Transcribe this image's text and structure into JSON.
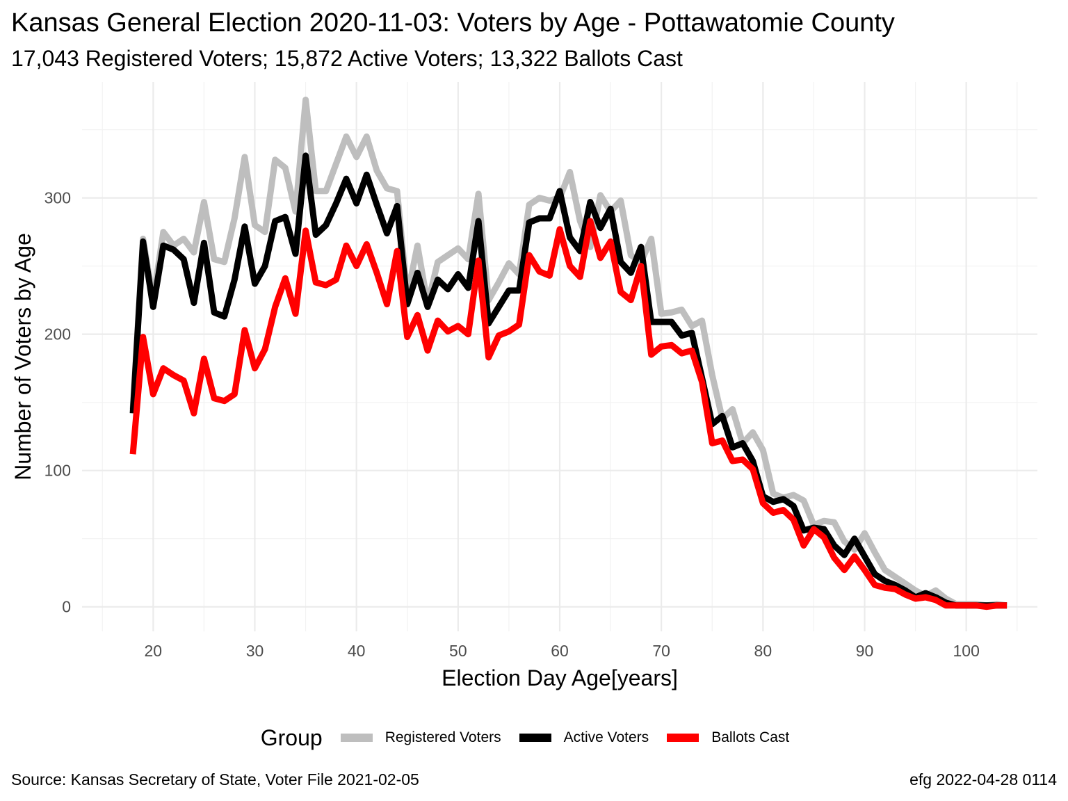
{
  "header": {
    "title": "Kansas General Election 2020-11-03:  Voters by Age - Pottawatomie County",
    "subtitle": "17,043 Registered Voters; 15,872 Active Voters; 13,322 Ballots Cast"
  },
  "footer": {
    "source": "Source:  Kansas Secretary of State, Voter File  2021-02-05",
    "credit": "efg 2022-04-28 0114"
  },
  "legend": {
    "title": "Group",
    "items": [
      {
        "label": "Registered Voters",
        "color": "#bebebe"
      },
      {
        "label": "Active Voters",
        "color": "#000000"
      },
      {
        "label": "Ballots Cast",
        "color": "#ff0000"
      }
    ]
  },
  "chart_data": {
    "type": "line",
    "xlabel": "Election Day Age[years]",
    "ylabel": "Number of Voters by Age",
    "xlim": [
      13,
      107
    ],
    "ylim": [
      -18,
      385
    ],
    "x_ticks": [
      20,
      30,
      40,
      50,
      60,
      70,
      80,
      90,
      100
    ],
    "y_ticks": [
      0,
      100,
      200,
      300
    ],
    "grid": true,
    "legend_position": "bottom",
    "x": [
      18,
      19,
      20,
      21,
      22,
      23,
      24,
      25,
      26,
      27,
      28,
      29,
      30,
      31,
      32,
      33,
      34,
      35,
      36,
      37,
      38,
      39,
      40,
      41,
      42,
      43,
      44,
      45,
      46,
      47,
      48,
      49,
      50,
      51,
      52,
      53,
      54,
      55,
      56,
      57,
      58,
      59,
      60,
      61,
      62,
      63,
      64,
      65,
      66,
      67,
      68,
      69,
      70,
      71,
      72,
      73,
      74,
      75,
      76,
      77,
      78,
      79,
      80,
      81,
      82,
      83,
      84,
      85,
      86,
      87,
      88,
      89,
      90,
      91,
      92,
      93,
      94,
      95,
      96,
      97,
      98,
      99,
      100,
      101,
      102,
      103,
      104
    ],
    "series": [
      {
        "name": "Registered Voters",
        "color": "#bebebe",
        "values": [
          145,
          270,
          225,
          275,
          265,
          270,
          260,
          297,
          255,
          253,
          285,
          330,
          280,
          275,
          328,
          322,
          290,
          372,
          305,
          305,
          325,
          345,
          330,
          345,
          320,
          307,
          305,
          228,
          265,
          222,
          253,
          258,
          263,
          255,
          303,
          225,
          238,
          252,
          244,
          295,
          300,
          298,
          300,
          319,
          283,
          264,
          302,
          290,
          298,
          258,
          253,
          270,
          215,
          216,
          218,
          206,
          210,
          170,
          138,
          145,
          120,
          128,
          115,
          83,
          80,
          82,
          78,
          60,
          63,
          62,
          48,
          42,
          54,
          40,
          27,
          22,
          17,
          12,
          8,
          12,
          6,
          2,
          2,
          2,
          1,
          2,
          1
        ]
      },
      {
        "name": "Active Voters",
        "color": "#000000",
        "values": [
          142,
          268,
          220,
          265,
          262,
          255,
          223,
          267,
          216,
          213,
          240,
          279,
          237,
          250,
          283,
          286,
          259,
          331,
          273,
          280,
          296,
          314,
          296,
          317,
          295,
          274,
          294,
          222,
          245,
          220,
          240,
          233,
          244,
          234,
          283,
          208,
          220,
          232,
          232,
          282,
          285,
          285,
          305,
          271,
          261,
          297,
          278,
          292,
          253,
          245,
          264,
          209,
          209,
          209,
          199,
          201,
          168,
          134,
          140,
          117,
          120,
          107,
          81,
          77,
          79,
          74,
          56,
          58,
          57,
          45,
          38,
          50,
          37,
          24,
          19,
          16,
          12,
          7,
          10,
          7,
          3,
          1,
          1,
          1,
          1,
          1,
          1
        ]
      },
      {
        "name": "Ballots Cast",
        "color": "#ff0000",
        "values": [
          112,
          198,
          156,
          175,
          170,
          166,
          142,
          182,
          153,
          151,
          156,
          203,
          175,
          189,
          220,
          241,
          215,
          276,
          238,
          236,
          240,
          265,
          250,
          266,
          245,
          222,
          261,
          198,
          214,
          188,
          210,
          202,
          206,
          200,
          254,
          183,
          199,
          202,
          207,
          258,
          246,
          243,
          277,
          250,
          242,
          283,
          256,
          268,
          231,
          225,
          250,
          185,
          191,
          192,
          186,
          188,
          165,
          120,
          122,
          107,
          108,
          101,
          76,
          69,
          71,
          64,
          45,
          57,
          51,
          36,
          27,
          37,
          27,
          16,
          14,
          13,
          9,
          6,
          7,
          5,
          1,
          1,
          1,
          1,
          0,
          1,
          1
        ]
      }
    ]
  }
}
